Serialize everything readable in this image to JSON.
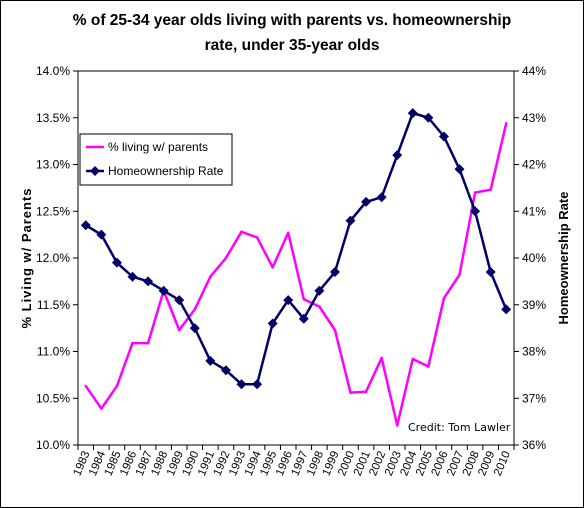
{
  "colors": {
    "parents": "#ff00ff",
    "homeownership": "#000066",
    "background": "#ffffff"
  },
  "chart_data": {
    "type": "line",
    "title_lines": [
      "% of 25-34 year olds living with parents vs. homeownership",
      "rate, under 35-year olds"
    ],
    "ylabel_left": "% Living w/ Parents",
    "ylabel_right": "Homeownership Rate",
    "credit": "Credit: Tom Lawler",
    "y_left": {
      "range": [
        10.0,
        14.0
      ],
      "ticks": [
        "10.0%",
        "10.5%",
        "11.0%",
        "11.5%",
        "12.0%",
        "12.5%",
        "13.0%",
        "13.5%",
        "14.0%"
      ]
    },
    "y_right": {
      "range": [
        36,
        44
      ],
      "ticks": [
        "36%",
        "37%",
        "38%",
        "39%",
        "40%",
        "41%",
        "42%",
        "43%",
        "44%"
      ]
    },
    "x": [
      "1983",
      "1984",
      "1985",
      "1986",
      "1987",
      "1988",
      "1989",
      "1990",
      "1991",
      "1992",
      "1993",
      "1994",
      "1995",
      "1996",
      "1997",
      "1998",
      "1999",
      "2000",
      "2001",
      "2002",
      "2003",
      "2004",
      "2005",
      "2006",
      "2007",
      "2008",
      "2009",
      "2010"
    ],
    "legend_position": "upper-left",
    "series": [
      {
        "name": "% living w/ parents",
        "axis": "left",
        "marker": "none",
        "values": [
          10.63,
          10.39,
          10.63,
          11.09,
          11.09,
          11.65,
          11.23,
          11.45,
          11.8,
          12.0,
          12.28,
          12.22,
          11.9,
          12.27,
          11.56,
          11.48,
          11.23,
          10.56,
          10.57,
          10.93,
          10.21,
          10.92,
          10.84,
          11.57,
          11.82,
          12.7,
          12.73,
          13.44
        ]
      },
      {
        "name": "Homeownership Rate",
        "axis": "right",
        "marker": "diamond",
        "values": [
          40.7,
          40.5,
          39.9,
          39.6,
          39.5,
          39.3,
          39.1,
          38.5,
          37.8,
          37.6,
          37.3,
          37.3,
          38.6,
          39.1,
          38.7,
          39.3,
          39.7,
          40.8,
          41.2,
          41.3,
          42.2,
          43.1,
          43.0,
          42.6,
          41.9,
          41.0,
          39.7,
          38.9
        ]
      }
    ]
  }
}
